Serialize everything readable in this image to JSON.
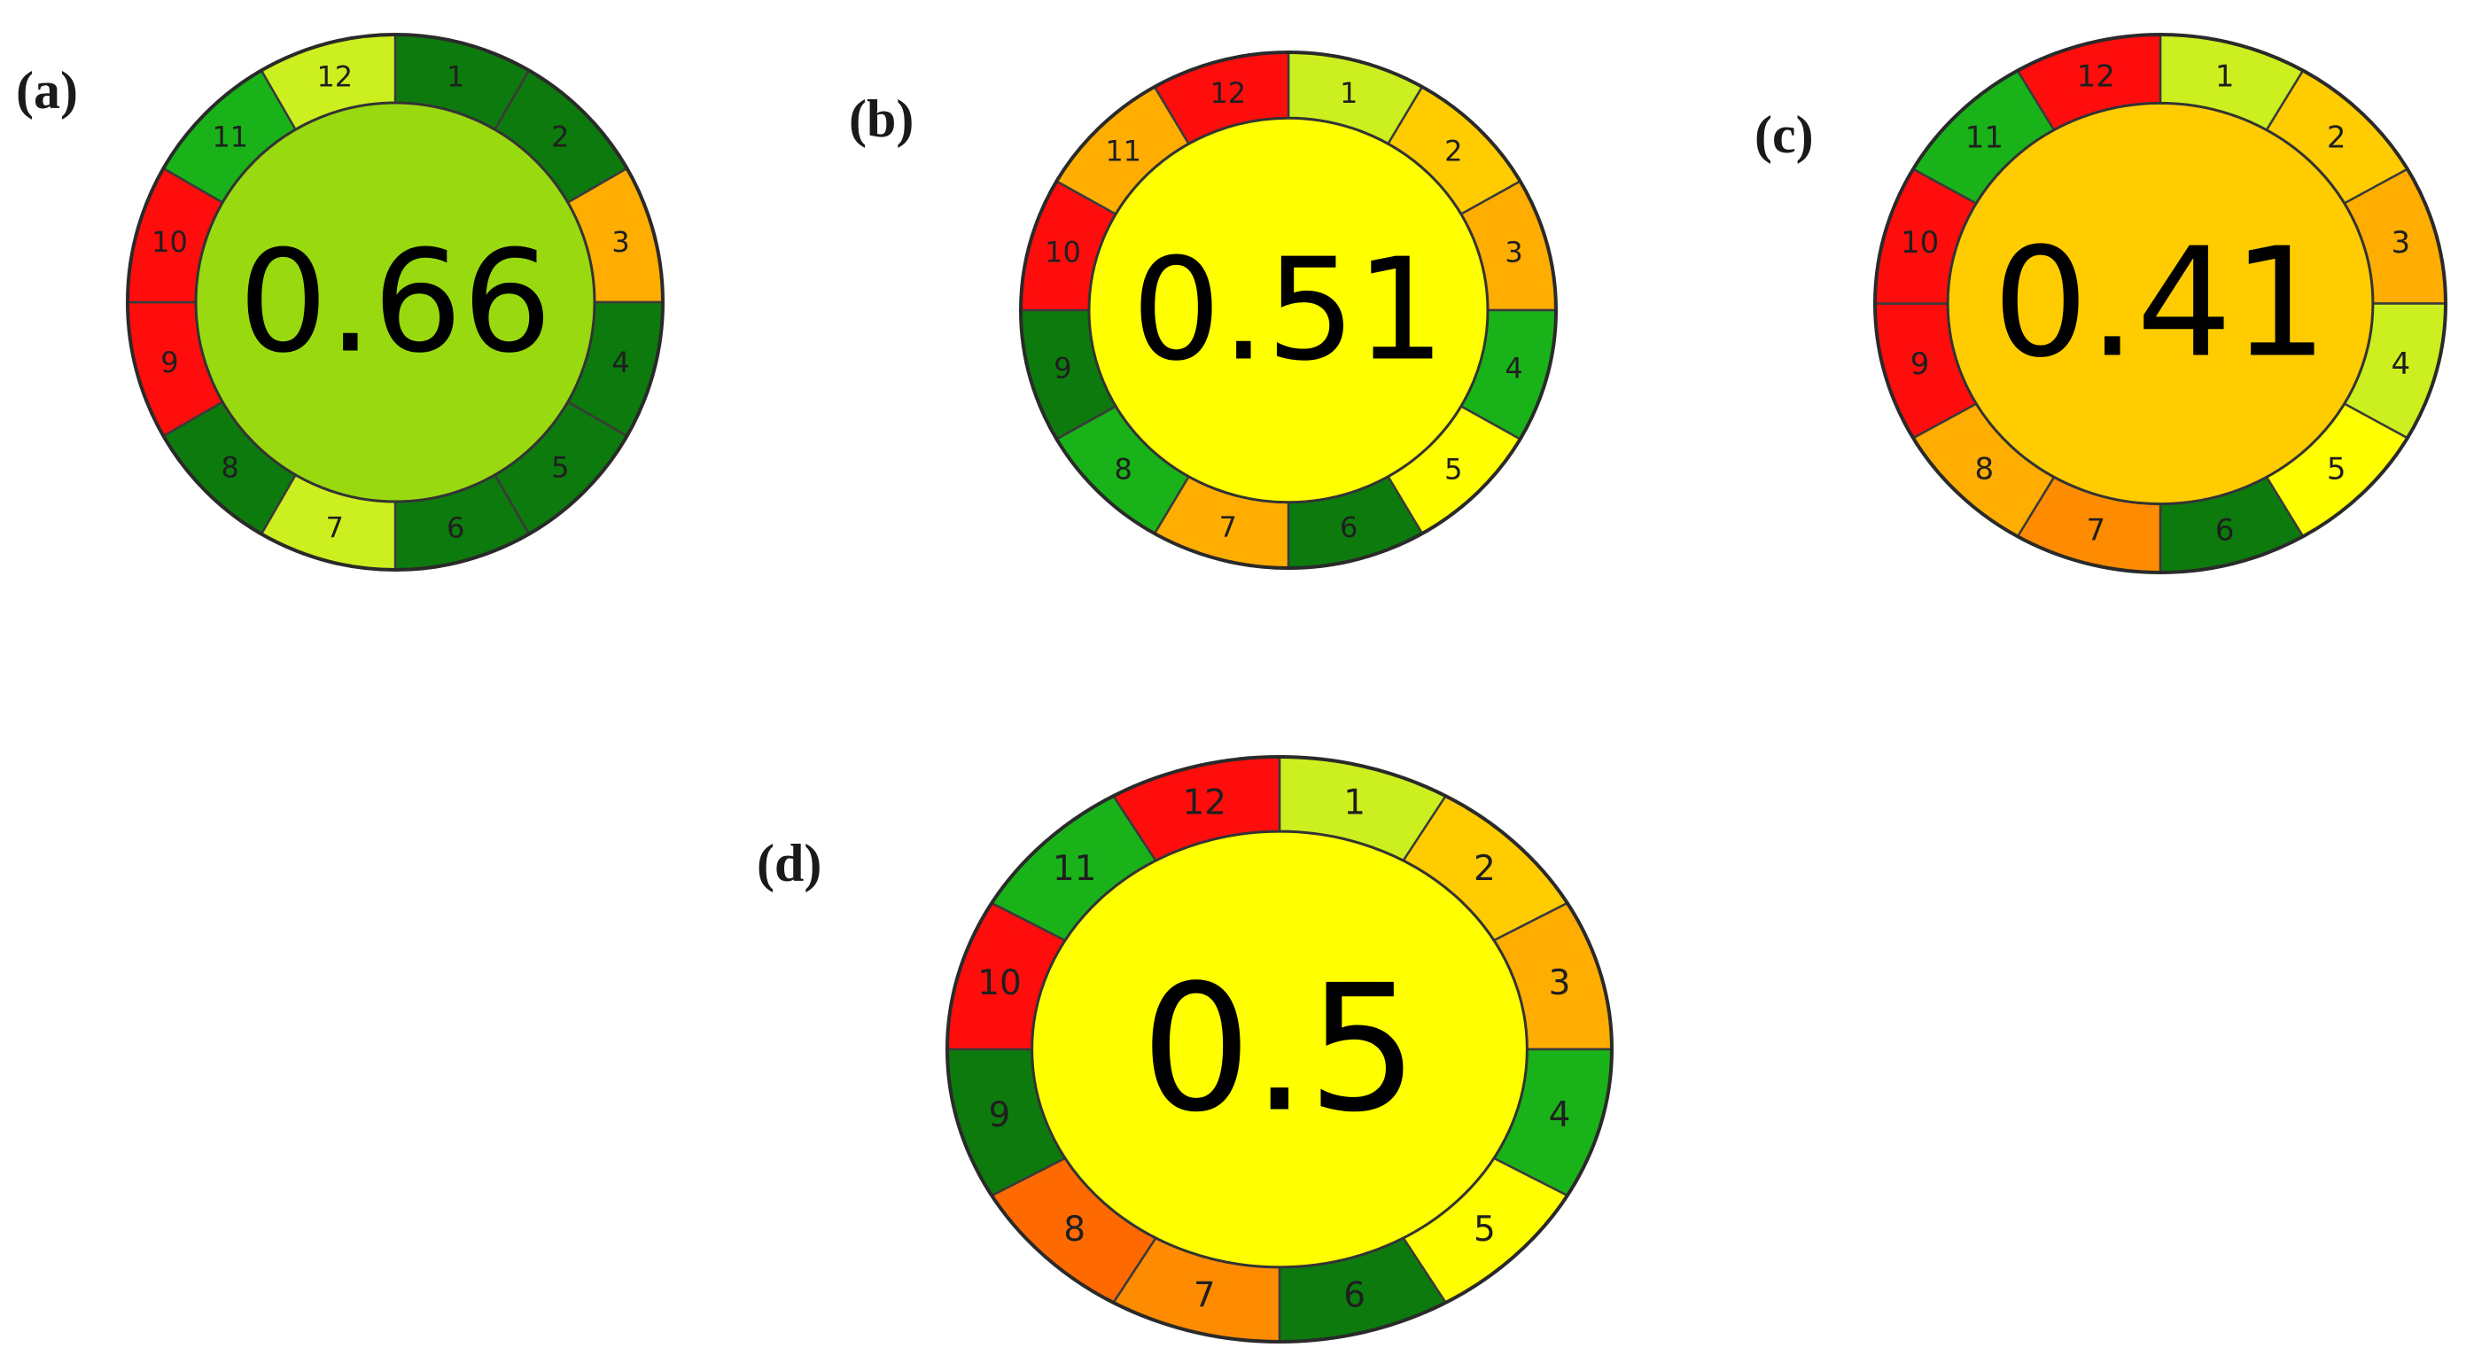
{
  "colors": {
    "dark_green": "#0d7a0d",
    "green": "#19b319",
    "yellow_green": "#ccef1f",
    "yellow": "#ffff00",
    "gold": "#ffcc00",
    "orange_light": "#ffae00",
    "orange": "#ff8c00",
    "dark_orange": "#ff6a00",
    "red": "#ff0d0d",
    "lime_center": "#99d90f",
    "yellow_center": "#ffff00",
    "gold_center": "#ffcc00"
  },
  "panels": [
    {
      "id": "a",
      "label": "(a)",
      "score": "0.66",
      "center_color": "#99d90f",
      "segments": [
        {
          "n": "1",
          "color": "#0d7a0d"
        },
        {
          "n": "2",
          "color": "#0d7a0d"
        },
        {
          "n": "3",
          "color": "#ffae00"
        },
        {
          "n": "4",
          "color": "#0d7a0d"
        },
        {
          "n": "5",
          "color": "#0d7a0d"
        },
        {
          "n": "6",
          "color": "#0d7a0d"
        },
        {
          "n": "7",
          "color": "#ccef1f"
        },
        {
          "n": "8",
          "color": "#0d7a0d"
        },
        {
          "n": "9",
          "color": "#ff0d0d"
        },
        {
          "n": "10",
          "color": "#ff0d0d"
        },
        {
          "n": "11",
          "color": "#19b319"
        },
        {
          "n": "12",
          "color": "#ccef1f"
        }
      ]
    },
    {
      "id": "b",
      "label": "(b)",
      "score": "0.51",
      "center_color": "#ffff00",
      "segments": [
        {
          "n": "1",
          "color": "#ccef1f"
        },
        {
          "n": "2",
          "color": "#ffcc00"
        },
        {
          "n": "3",
          "color": "#ffae00"
        },
        {
          "n": "4",
          "color": "#19b319"
        },
        {
          "n": "5",
          "color": "#ffff00"
        },
        {
          "n": "6",
          "color": "#0d7a0d"
        },
        {
          "n": "7",
          "color": "#ffae00"
        },
        {
          "n": "8",
          "color": "#19b319"
        },
        {
          "n": "9",
          "color": "#0d7a0d"
        },
        {
          "n": "10",
          "color": "#ff0d0d"
        },
        {
          "n": "11",
          "color": "#ffae00"
        },
        {
          "n": "12",
          "color": "#ff0d0d"
        }
      ]
    },
    {
      "id": "c",
      "label": "(c)",
      "score": "0.41",
      "center_color": "#ffcc00",
      "segments": [
        {
          "n": "1",
          "color": "#ccef1f"
        },
        {
          "n": "2",
          "color": "#ffcc00"
        },
        {
          "n": "3",
          "color": "#ffae00"
        },
        {
          "n": "4",
          "color": "#ccef1f"
        },
        {
          "n": "5",
          "color": "#ffff00"
        },
        {
          "n": "6",
          "color": "#0d7a0d"
        },
        {
          "n": "7",
          "color": "#ff8c00"
        },
        {
          "n": "8",
          "color": "#ffae00"
        },
        {
          "n": "9",
          "color": "#ff0d0d"
        },
        {
          "n": "10",
          "color": "#ff0d0d"
        },
        {
          "n": "11",
          "color": "#19b319"
        },
        {
          "n": "12",
          "color": "#ff0d0d"
        }
      ]
    },
    {
      "id": "d",
      "label": "(d)",
      "score": "0.5",
      "center_color": "#ffff00",
      "segments": [
        {
          "n": "1",
          "color": "#ccef1f"
        },
        {
          "n": "2",
          "color": "#ffcc00"
        },
        {
          "n": "3",
          "color": "#ffae00"
        },
        {
          "n": "4",
          "color": "#19b319"
        },
        {
          "n": "5",
          "color": "#ffff00"
        },
        {
          "n": "6",
          "color": "#0d7a0d"
        },
        {
          "n": "7",
          "color": "#ff8c00"
        },
        {
          "n": "8",
          "color": "#ff6a00"
        },
        {
          "n": "9",
          "color": "#0d7a0d"
        },
        {
          "n": "10",
          "color": "#ff0d0d"
        },
        {
          "n": "11",
          "color": "#19b319"
        },
        {
          "n": "12",
          "color": "#ff0d0d"
        }
      ]
    }
  ]
}
